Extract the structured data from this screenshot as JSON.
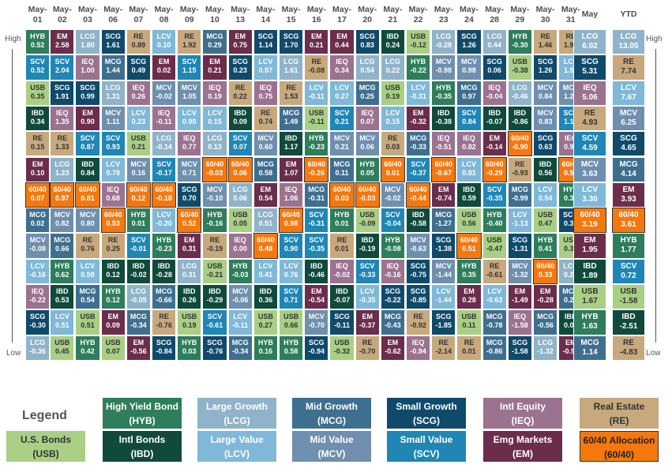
{
  "chart_data": {
    "type": "table",
    "title": "",
    "columns": [
      "May-01",
      "May-02",
      "May-03",
      "May-06",
      "May-07",
      "May-08",
      "May-09",
      "May-10",
      "May-13",
      "May-14",
      "May-15",
      "May-16",
      "May-17",
      "May-20",
      "May-21",
      "May-22",
      "May-23",
      "May-24",
      "May-28",
      "May-29",
      "May-30",
      "May-31"
    ],
    "summary_columns": [
      "May",
      "YTD"
    ],
    "axis_high": "High",
    "axis_low": "Low",
    "colors": {
      "HYB": "#2e7d5b",
      "LCG": "#8fb3c9",
      "MCG": "#3f6f8f",
      "SCG": "#0f4a6b",
      "IEQ": "#9b7290",
      "RE": "#c7a97d",
      "USB": "#a9cf84",
      "IBD": "#0f4a3c",
      "LCV": "#7fb8d8",
      "MCV": "#6f8fae",
      "SCV": "#1f86b5",
      "EM": "#6b2d4b",
      "60/40": "#f5780f"
    },
    "grid": [
      [
        [
          "HYB",
          "0.52"
        ],
        [
          "EM",
          "2.58"
        ],
        [
          "LCG",
          "1.80"
        ],
        [
          "SCG",
          "1.61"
        ],
        [
          "RE",
          "0.89"
        ],
        [
          "LCV",
          "0.10"
        ],
        [
          "RE",
          "1.92"
        ],
        [
          "MCG",
          "0.29"
        ],
        [
          "EM",
          "0.75"
        ],
        [
          "SCG",
          "1.14"
        ],
        [
          "SCG",
          "1.70"
        ],
        [
          "EM",
          "0.21"
        ],
        [
          "EM",
          "0.44"
        ],
        [
          "SCG",
          "0.83"
        ],
        [
          "IBD",
          "0.24"
        ],
        [
          "USB",
          "-0.12"
        ],
        [
          "LCG",
          "-0.28"
        ],
        [
          "SCG",
          "1.26"
        ],
        [
          "LCG",
          "0.44"
        ],
        [
          "HYB",
          "-0.30"
        ],
        [
          "RE",
          "1.46"
        ],
        [
          "RE",
          "1.96"
        ],
        [
          "LCG",
          "6.02"
        ],
        [
          "LCG",
          "13.05"
        ]
      ],
      [
        [
          "SCV",
          "0.52"
        ],
        [
          "SCV",
          "2.04"
        ],
        [
          "IEQ",
          "1.00"
        ],
        [
          "MCG",
          "1.44"
        ],
        [
          "SCG",
          "0.49"
        ],
        [
          "EM",
          "0.02"
        ],
        [
          "SCV",
          "1.15"
        ],
        [
          "EM",
          "0.21"
        ],
        [
          "SCG",
          "0.23"
        ],
        [
          "LCV",
          "0.97"
        ],
        [
          "LCG",
          "1.61"
        ],
        [
          "RE",
          "-0.08"
        ],
        [
          "IEQ",
          "0.34"
        ],
        [
          "LCG",
          "0.54"
        ],
        [
          "LCG",
          "0.22"
        ],
        [
          "HYB",
          "-0.22"
        ],
        [
          "MCV",
          "-0.98"
        ],
        [
          "MCV",
          "0.98"
        ],
        [
          "SCG",
          "0.06"
        ],
        [
          "USB",
          "-0.38"
        ],
        [
          "SCG",
          "1.26"
        ],
        [
          "LCV",
          "1.59"
        ],
        [
          "SCG",
          "5.31"
        ],
        [
          "RE",
          "7.74"
        ]
      ],
      [
        [
          "USB",
          "0.35"
        ],
        [
          "SCG",
          "1.91"
        ],
        [
          "SCG",
          "0.99"
        ],
        [
          "LCG",
          "1.31"
        ],
        [
          "IEQ",
          "0.26"
        ],
        [
          "MCV",
          "-0.02"
        ],
        [
          "MCV",
          "1.05"
        ],
        [
          "IEQ",
          "0.19"
        ],
        [
          "RE",
          "0.22"
        ],
        [
          "IEQ",
          "0.75"
        ],
        [
          "RE",
          "1.53"
        ],
        [
          "LCV",
          "-0.11"
        ],
        [
          "LCV",
          "0.27"
        ],
        [
          "MCG",
          "0.25"
        ],
        [
          "USB",
          "0.19"
        ],
        [
          "LCV",
          "-0.31"
        ],
        [
          "HYB",
          "-0.35"
        ],
        [
          "MCG",
          "0.97"
        ],
        [
          "IEQ",
          "-0.04"
        ],
        [
          "LCG",
          "-0.46"
        ],
        [
          "MCV",
          "0.84"
        ],
        [
          "MCV",
          "1.27"
        ],
        [
          "IEQ",
          "5.06"
        ],
        [
          "LCV",
          "7.67"
        ]
      ],
      [
        [
          "IBD",
          "0.34"
        ],
        [
          "IEQ",
          "1.35"
        ],
        [
          "EM",
          "0.90"
        ],
        [
          "MCV",
          "1.11"
        ],
        [
          "LCV",
          "0.23"
        ],
        [
          "IEQ",
          "-0.11"
        ],
        [
          "LCV",
          "0.90"
        ],
        [
          "LCV",
          "0.15"
        ],
        [
          "IBD",
          "0.09"
        ],
        [
          "RE",
          "0.74"
        ],
        [
          "MCG",
          "1.49"
        ],
        [
          "USB",
          "-0.11"
        ],
        [
          "SCV",
          "0.21"
        ],
        [
          "IEQ",
          "0.07"
        ],
        [
          "LCV",
          "0.15"
        ],
        [
          "EM",
          "-0.32"
        ],
        [
          "IBD",
          "-0.38"
        ],
        [
          "SCV",
          "0.84"
        ],
        [
          "IBD",
          "-0.07"
        ],
        [
          "IBD",
          "-0.86"
        ],
        [
          "MCV",
          "0.83"
        ],
        [
          "SCV",
          "1.17"
        ],
        [
          "RE",
          "4.93"
        ],
        [
          "MCV",
          "6.25"
        ]
      ],
      [
        [
          "RE",
          "0.15"
        ],
        [
          "RE",
          "1.33"
        ],
        [
          "SCV",
          "0.87"
        ],
        [
          "SCV",
          "0.93"
        ],
        [
          "USB",
          "0.21"
        ],
        [
          "LCG",
          "-0.14"
        ],
        [
          "IEQ",
          "0.77"
        ],
        [
          "LCG",
          "0.13"
        ],
        [
          "SCV",
          "0.07"
        ],
        [
          "MCV",
          "0.60"
        ],
        [
          "IBD",
          "1.17"
        ],
        [
          "HYB",
          "-0.23"
        ],
        [
          "MCV",
          "0.21"
        ],
        [
          "MCV",
          "0.06"
        ],
        [
          "RE",
          "0.03"
        ],
        [
          "MCG",
          "-0.33"
        ],
        [
          "IEQ",
          "-0.51"
        ],
        [
          "IEQ",
          "0.82"
        ],
        [
          "EM",
          "-0.14"
        ],
        [
          "60/40",
          "-0.90"
        ],
        [
          "SCG",
          "0.63"
        ],
        [
          "IEQ",
          "0.96"
        ],
        [
          "SCV",
          "4.59"
        ],
        [
          "SCG",
          "4.65"
        ]
      ],
      [
        [
          "EM",
          "0.10"
        ],
        [
          "LCG",
          "1.23"
        ],
        [
          "IBD",
          "0.84"
        ],
        [
          "LCV",
          "0.78"
        ],
        [
          "MCV",
          "0.16"
        ],
        [
          "SCV",
          "-0.17"
        ],
        [
          "MCV",
          "0.71"
        ],
        [
          "60/40",
          "-0.03"
        ],
        [
          "60/40",
          "0.06"
        ],
        [
          "MCG",
          "0.58"
        ],
        [
          "EM",
          "1.07"
        ],
        [
          "60/40",
          "-0.26"
        ],
        [
          "MCG",
          "0.11"
        ],
        [
          "HYB",
          "0.05"
        ],
        [
          "60/40",
          "0.01"
        ],
        [
          "SCV",
          "-0.37"
        ],
        [
          "60/40",
          "-0.67"
        ],
        [
          "LCV",
          "0.81"
        ],
        [
          "60/40",
          "-0.29"
        ],
        [
          "RE",
          "-0.93"
        ],
        [
          "IBD",
          "0.56"
        ],
        [
          "60/40",
          "0.55"
        ],
        [
          "MCV",
          "3.63"
        ],
        [
          "MCG",
          "4.14"
        ]
      ],
      [
        [
          "60/40",
          "0.07"
        ],
        [
          "60/40",
          "0.97"
        ],
        [
          "60/40",
          "0.81"
        ],
        [
          "IEQ",
          "0.68"
        ],
        [
          "60/40",
          "0.12"
        ],
        [
          "60/40",
          "-0.18"
        ],
        [
          "SCG",
          "0.70"
        ],
        [
          "MCV",
          "-0.10"
        ],
        [
          "LCG",
          "0.06"
        ],
        [
          "EM",
          "0.54"
        ],
        [
          "IEQ",
          "1.06"
        ],
        [
          "MCG",
          "-0.31"
        ],
        [
          "60/40",
          "0.03"
        ],
        [
          "60/40",
          "-0.03"
        ],
        [
          "MCV",
          "-0.02"
        ],
        [
          "60/40",
          "-0.44"
        ],
        [
          "EM",
          "-0.74"
        ],
        [
          "IBD",
          "0.59"
        ],
        [
          "SCV",
          "-0.35"
        ],
        [
          "MCG",
          "-0.99"
        ],
        [
          "LCV",
          "0.54"
        ],
        [
          "HYB",
          "0.35"
        ],
        [
          "LCV",
          "3.30"
        ],
        [
          "EM",
          "3.93"
        ]
      ],
      [
        [
          "MCG",
          "0.02"
        ],
        [
          "MCV",
          "0.82"
        ],
        [
          "MCV",
          "0.80"
        ],
        [
          "60/40",
          "0.53"
        ],
        [
          "HYB",
          "0.01"
        ],
        [
          "LCV",
          "-0.20"
        ],
        [
          "60/40",
          "0.52"
        ],
        [
          "HYB",
          "-0.16"
        ],
        [
          "USB",
          "0.05"
        ],
        [
          "LCG",
          "0.51"
        ],
        [
          "60/40",
          "0.98"
        ],
        [
          "SCV",
          "-0.31"
        ],
        [
          "HYB",
          "0.01"
        ],
        [
          "USB",
          "-0.09"
        ],
        [
          "SCV",
          "-0.04"
        ],
        [
          "IBD",
          "-0.58"
        ],
        [
          "MCG",
          "-1.27"
        ],
        [
          "USB",
          "0.56"
        ],
        [
          "HYB",
          "-0.40"
        ],
        [
          "LCV",
          "-1.13"
        ],
        [
          "USB",
          "0.47"
        ],
        [
          "SCG",
          "0.33"
        ],
        [
          "60/40",
          "3.19"
        ],
        [
          "60/40",
          "3.61"
        ]
      ],
      [
        [
          "MCV",
          "-0.08"
        ],
        [
          "MCG",
          "0.66"
        ],
        [
          "RE",
          "0.76"
        ],
        [
          "RE",
          "0.25"
        ],
        [
          "SCV",
          "-0.01"
        ],
        [
          "HYB",
          "-0.23"
        ],
        [
          "EM",
          "0.31"
        ],
        [
          "RE",
          "-0.19"
        ],
        [
          "IEQ",
          "0.00"
        ],
        [
          "60/40",
          "0.48"
        ],
        [
          "SCV",
          "0.90"
        ],
        [
          "SCV",
          "-0.35"
        ],
        [
          "RE",
          "0.01"
        ],
        [
          "IBD",
          "-0.19"
        ],
        [
          "HYB",
          "-0.08"
        ],
        [
          "MCV",
          "-0.63"
        ],
        [
          "SCG",
          "-1.38"
        ],
        [
          "60/40",
          "0.51"
        ],
        [
          "USB",
          "-0.47"
        ],
        [
          "SCG",
          "-1.31"
        ],
        [
          "HYB",
          "0.41"
        ],
        [
          "USB",
          "0.32"
        ],
        [
          "EM",
          "1.95"
        ],
        [
          "HYB",
          "1.77"
        ]
      ],
      [
        [
          "LCV",
          "-0.16"
        ],
        [
          "HYB",
          "0.62"
        ],
        [
          "LCV",
          "0.59"
        ],
        [
          "IBD",
          "0.12"
        ],
        [
          "IBD",
          "-0.02"
        ],
        [
          "IBD",
          "-0.28"
        ],
        [
          "LCG",
          "0.31"
        ],
        [
          "USB",
          "-0.21"
        ],
        [
          "HYB",
          "-0.03"
        ],
        [
          "LCV",
          "0.41"
        ],
        [
          "LCV",
          "0.76"
        ],
        [
          "IBD",
          "-0.46"
        ],
        [
          "IEQ",
          "-0.02"
        ],
        [
          "SCV",
          "-0.33"
        ],
        [
          "IEQ",
          "-0.16"
        ],
        [
          "SCG",
          "-0.75"
        ],
        [
          "MCV",
          "-1.44"
        ],
        [
          "HYB",
          "0.35"
        ],
        [
          "RE",
          "-0.61"
        ],
        [
          "MCV",
          "-1.32"
        ],
        [
          "60/40",
          "0.33"
        ],
        [
          "LCG",
          "0.26"
        ],
        [
          "IBD",
          "1.89"
        ],
        [
          "SCV",
          "0.72"
        ]
      ],
      [
        [
          "IEQ",
          "-0.22"
        ],
        [
          "IBD",
          "0.53"
        ],
        [
          "MCG",
          "0.54"
        ],
        [
          "HYB",
          "0.12"
        ],
        [
          "LCG",
          "-0.05"
        ],
        [
          "MCG",
          "-0.66"
        ],
        [
          "IBD",
          "0.26"
        ],
        [
          "IBD",
          "-0.29"
        ],
        [
          "MCV",
          "-0.06"
        ],
        [
          "IBD",
          "0.36"
        ],
        [
          "SCV",
          "0.71"
        ],
        [
          "EM",
          "-0.54"
        ],
        [
          "IBD",
          "-0.07"
        ],
        [
          "LCV",
          "-0.35"
        ],
        [
          "SCG",
          "-0.22"
        ],
        [
          "SCG",
          "-0.85"
        ],
        [
          "LCV",
          "-1.44"
        ],
        [
          "EM",
          "0.28"
        ],
        [
          "LCV",
          "-0.63"
        ],
        [
          "EM",
          "-1.49"
        ],
        [
          "EM",
          "-0.28"
        ],
        [
          "MCG",
          "0.21"
        ],
        [
          "USB",
          "1.67"
        ],
        [
          "USB",
          "-1.58"
        ]
      ],
      [
        [
          "SCG",
          "-0.30"
        ],
        [
          "LCV",
          "0.51"
        ],
        [
          "USB",
          "0.51"
        ],
        [
          "EM",
          "0.09"
        ],
        [
          "MCG",
          "-0.34"
        ],
        [
          "RE",
          "-0.76"
        ],
        [
          "USB",
          "0.19"
        ],
        [
          "SCV",
          "-0.61"
        ],
        [
          "LCV",
          "-0.11"
        ],
        [
          "USB",
          "0.27"
        ],
        [
          "USB",
          "0.66"
        ],
        [
          "MCV",
          "-0.70"
        ],
        [
          "SCG",
          "-0.11"
        ],
        [
          "EM",
          "-0.37"
        ],
        [
          "MCG",
          "-0.43"
        ],
        [
          "RE",
          "-0.92"
        ],
        [
          "SCG",
          "-1.85"
        ],
        [
          "USB",
          "0.11"
        ],
        [
          "MCG",
          "-0.78"
        ],
        [
          "IEQ",
          "-1.58"
        ],
        [
          "MCG",
          "-0.56"
        ],
        [
          "IBD",
          "0.00"
        ],
        [
          "HYB",
          "1.63"
        ],
        [
          "IBD",
          "-2.51"
        ]
      ],
      [
        [
          "LCG",
          "-0.36"
        ],
        [
          "USB",
          "0.45"
        ],
        [
          "HYB",
          "0.42"
        ],
        [
          "USB",
          "0.07"
        ],
        [
          "EM",
          "-0.56"
        ],
        [
          "SCG",
          "-0.84"
        ],
        [
          "HYB",
          "0.03"
        ],
        [
          "SCG",
          "-0.76"
        ],
        [
          "MCG",
          "-0.34"
        ],
        [
          "HYB",
          "0.16"
        ],
        [
          "HYB",
          "0.58"
        ],
        [
          "SCG",
          "-0.94"
        ],
        [
          "USB",
          "-0.32"
        ],
        [
          "RE",
          "-0.70"
        ],
        [
          "EM",
          "-0.62"
        ],
        [
          "IEQ",
          "-0.94"
        ],
        [
          "RE",
          "-2.14"
        ],
        [
          "RE",
          "0.01"
        ],
        [
          "MCG",
          "-0.86"
        ],
        [
          "SCG",
          "-1.58"
        ],
        [
          "LCG",
          "-1.32"
        ],
        [
          "EM",
          "-0.97"
        ],
        [
          "MCG",
          "1.14"
        ],
        [
          "RE",
          "-4.83"
        ]
      ]
    ],
    "legend": {
      "title": "Legend",
      "items": [
        {
          "code": "HYB",
          "name": "High Yield Bond",
          "label": "(HYB)"
        },
        {
          "code": "LCG",
          "name": "Large Growth",
          "label": "(LCG)"
        },
        {
          "code": "MCG",
          "name": "Mid Growth",
          "label": "(MCG)"
        },
        {
          "code": "SCG",
          "name": "Small Growth",
          "label": "(SCG)"
        },
        {
          "code": "IEQ",
          "name": "Intl Equity",
          "label": "(IEQ)"
        },
        {
          "code": "RE",
          "name": "Real Estate",
          "label": "(RE)"
        },
        {
          "code": "USB",
          "name": "U.S. Bonds",
          "label": "(USB)"
        },
        {
          "code": "IBD",
          "name": "Intl Bonds",
          "label": "(IBD)"
        },
        {
          "code": "LCV",
          "name": "Large Value",
          "label": "(LCV)"
        },
        {
          "code": "MCV",
          "name": "Mid Value",
          "label": "(MCV)"
        },
        {
          "code": "SCV",
          "name": "Small Value",
          "label": "(SCV)"
        },
        {
          "code": "EM",
          "name": "Emg Markets",
          "label": "(EM)"
        },
        {
          "code": "60/40",
          "name": "60/40 Allocation",
          "label": "(60/40)"
        }
      ]
    }
  }
}
